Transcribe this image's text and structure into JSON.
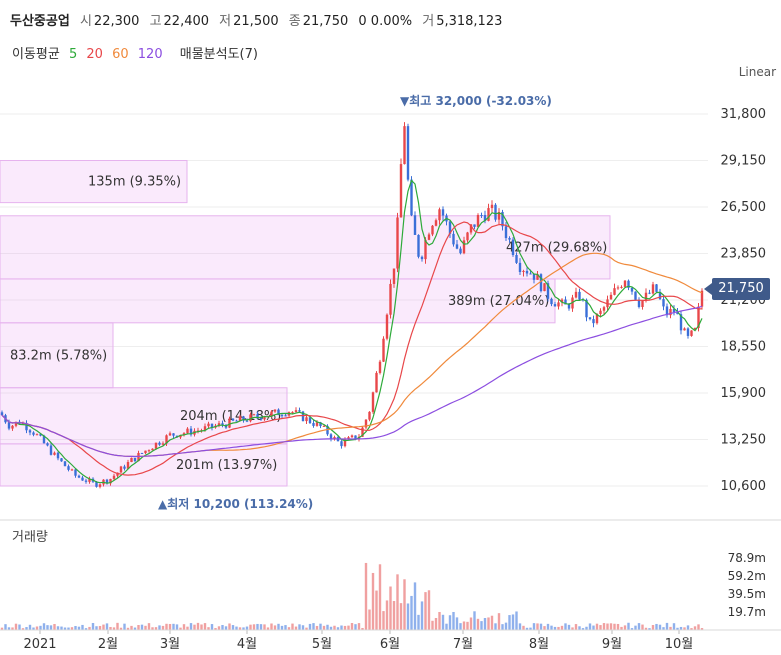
{
  "header": {
    "name": "두산중공업",
    "open_label": "시",
    "open": "22,300",
    "high_label": "고",
    "high": "22,400",
    "low_label": "저",
    "low": "21,500",
    "close_label": "종",
    "close": "21,750",
    "change": "0 0.00%",
    "volume_label": "거",
    "volume": "5,318,123"
  },
  "legend": {
    "ma_label": "이동평균",
    "ma5": "5",
    "ma20": "20",
    "ma60": "60",
    "ma120": "120",
    "vp_label": "매물분석도(7)",
    "colors": {
      "ma5": "#2eaa3a",
      "ma20": "#e8474a",
      "ma60": "#f08a3c",
      "ma120": "#8c4ee0"
    }
  },
  "scale_label": "Linear",
  "current_price": "21,750",
  "volume_title": "거래량",
  "chart_data": {
    "type": "candlestick",
    "y_ticks": [
      "31,800",
      "29,150",
      "26,500",
      "23,850",
      "21,200",
      "18,550",
      "15,900",
      "13,250",
      "10,600"
    ],
    "y_values": [
      31800,
      29150,
      26500,
      23850,
      21200,
      18550,
      15900,
      13250,
      10600
    ],
    "x_ticks": [
      "2021",
      "2월",
      "3월",
      "4월",
      "5월",
      "6월",
      "7월",
      "8월",
      "9월",
      "10월"
    ],
    "volume_ticks": [
      "78.9m",
      "59.2m",
      "39.5m",
      "19.7m"
    ],
    "volume_values": [
      78.9,
      59.2,
      39.5,
      19.7
    ],
    "annotations": {
      "high": "▼최고 32,000 (-32.03%)",
      "low": "▲최저 10,200 (113.24%)"
    },
    "volume_profile": [
      {
        "label": "135m (9.35%)",
        "low": 26750,
        "high": 29150
      },
      {
        "label": "427m (29.68%)",
        "low": 22400,
        "high": 26000
      },
      {
        "label": "389m (27.04%)",
        "low": 19900,
        "high": 22400
      },
      {
        "label": "83.2m (5.78%)",
        "low": 16200,
        "high": 19900
      },
      {
        "label": "204m (14.18%)",
        "low": 13000,
        "high": 16200
      },
      {
        "label": "201m (13.97%)",
        "low": 10600,
        "high": 13000
      }
    ]
  }
}
